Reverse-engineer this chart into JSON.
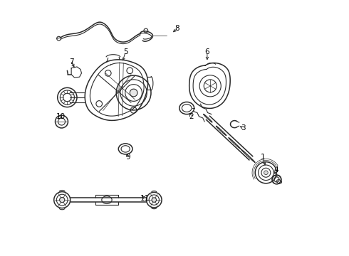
{
  "background_color": "#ffffff",
  "line_color": "#2a2a2a",
  "label_color": "#000000",
  "fig_width": 4.9,
  "fig_height": 3.6,
  "dpi": 100,
  "label_fontsize": 7.5,
  "labels": {
    "1": [
      0.845,
      0.385,
      0.858,
      0.345
    ],
    "2": [
      0.565,
      0.545,
      0.555,
      0.565
    ],
    "3": [
      0.77,
      0.5,
      0.748,
      0.51
    ],
    "4": [
      0.897,
      0.335,
      0.89,
      0.31
    ],
    "5": [
      0.308,
      0.798,
      0.295,
      0.755
    ],
    "6": [
      0.628,
      0.798,
      0.628,
      0.758
    ],
    "7": [
      0.098,
      0.76,
      0.11,
      0.73
    ],
    "8": [
      0.51,
      0.89,
      0.488,
      0.87
    ],
    "9": [
      0.318,
      0.385,
      0.31,
      0.408
    ],
    "10": [
      0.055,
      0.545,
      0.065,
      0.53
    ],
    "11": [
      0.385,
      0.225,
      0.365,
      0.238
    ]
  }
}
